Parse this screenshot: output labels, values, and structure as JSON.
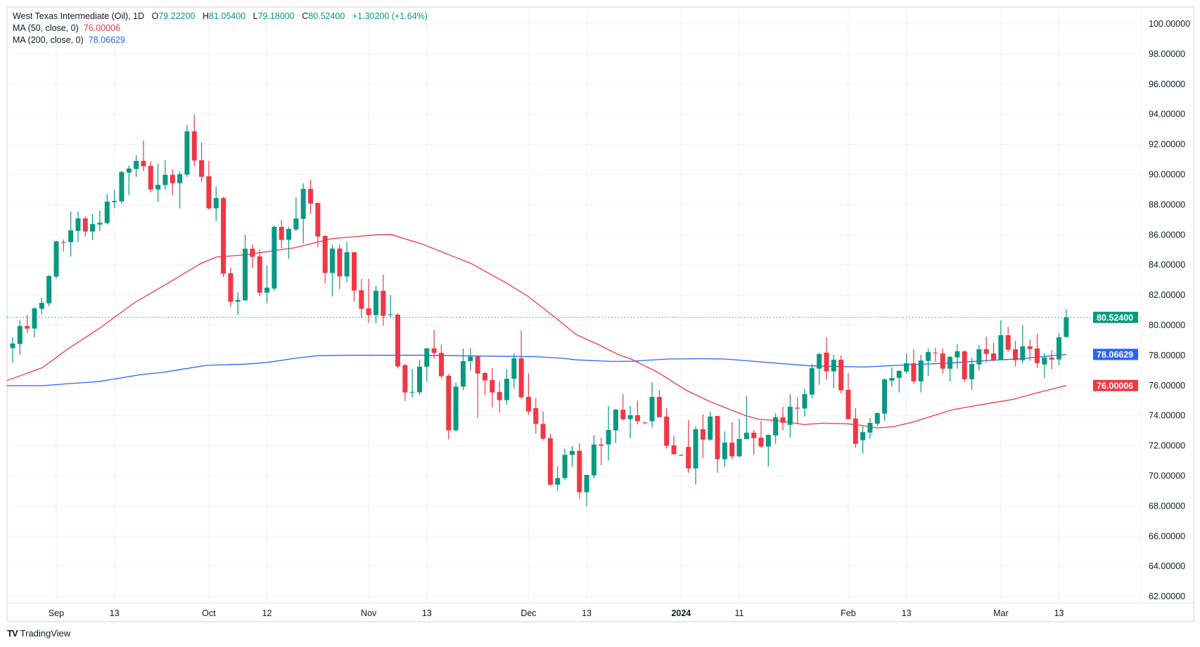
{
  "legend": {
    "symbol": "West Texas Intermediate (Oil), 1D",
    "o_label": "O",
    "o_value": "79.22200",
    "h_label": "H",
    "h_value": "81.05400",
    "l_label": "L",
    "l_value": "79.18000",
    "c_label": "C",
    "c_value": "80.52400",
    "change": "+1.30200 (+1.64%)",
    "ma50_label": "MA (50, close, 0)",
    "ma50_value": "76.00006",
    "ma200_label": "MA (200, close, 0)",
    "ma200_value": "78.06629"
  },
  "branding": {
    "logo_text": "TradingView",
    "logo_mark": "TV"
  },
  "colors": {
    "up": "#089981",
    "down": "#f23645",
    "ma50": "#f23645",
    "ma200": "#2962ff",
    "grid": "#f0f3fa",
    "text": "#131722"
  },
  "chart_data": {
    "type": "candlestick",
    "title": "West Texas Intermediate (Oil), 1D",
    "ylim": [
      62,
      100
    ],
    "y_ticks": [
      "100.00000",
      "98.00000",
      "96.00000",
      "94.00000",
      "92.00000",
      "90.00000",
      "88.00000",
      "86.00000",
      "84.00000",
      "82.00000",
      "80.00000",
      "78.00000",
      "76.00000",
      "74.00000",
      "72.00000",
      "70.00000",
      "68.00000",
      "66.00000",
      "64.00000",
      "62.00000"
    ],
    "y_tick_values": [
      100,
      98,
      96,
      94,
      92,
      90,
      88,
      86,
      84,
      82,
      80,
      78,
      76,
      74,
      72,
      70,
      68,
      66,
      64,
      62
    ],
    "x_ticks": [
      {
        "i": 6,
        "label": "Sep",
        "bold": false
      },
      {
        "i": 14,
        "label": "13",
        "bold": false
      },
      {
        "i": 27,
        "label": "Oct",
        "bold": false
      },
      {
        "i": 35,
        "label": "12",
        "bold": false
      },
      {
        "i": 49,
        "label": "Nov",
        "bold": false
      },
      {
        "i": 57,
        "label": "13",
        "bold": false
      },
      {
        "i": 71,
        "label": "Dec",
        "bold": false
      },
      {
        "i": 79,
        "label": "13",
        "bold": false
      },
      {
        "i": 92,
        "label": "2024",
        "bold": true
      },
      {
        "i": 100,
        "label": "11",
        "bold": false
      },
      {
        "i": 115,
        "label": "Feb",
        "bold": false
      },
      {
        "i": 123,
        "label": "13",
        "bold": false
      },
      {
        "i": 136,
        "label": "Mar",
        "bold": false
      },
      {
        "i": 144,
        "label": "13",
        "bold": false
      }
    ],
    "last_price": {
      "value": 80.524,
      "label": "80.52400"
    },
    "ma50_last": {
      "value": 76.00006,
      "label": "76.00006"
    },
    "ma200_last": {
      "value": 78.06629,
      "label": "78.06629"
    },
    "ohlc": [
      [
        78.48,
        79.21,
        77.55,
        78.79
      ],
      [
        78.76,
        80.33,
        78.04,
        79.95
      ],
      [
        79.95,
        80.7,
        79.5,
        79.78
      ],
      [
        79.78,
        81.2,
        79.2,
        81.12
      ],
      [
        81.09,
        81.82,
        80.7,
        81.49
      ],
      [
        81.46,
        83.36,
        81.27,
        83.27
      ],
      [
        83.23,
        85.6,
        83.1,
        85.57
      ],
      [
        85.53,
        85.7,
        84.9,
        85.5
      ],
      [
        85.52,
        87.55,
        84.57,
        86.3
      ],
      [
        86.26,
        87.55,
        85.52,
        87.09
      ],
      [
        87.09,
        87.23,
        85.89,
        86.22
      ],
      [
        86.22,
        87.37,
        85.66,
        86.71
      ],
      [
        86.68,
        87.6,
        86.26,
        86.8
      ],
      [
        86.78,
        88.72,
        86.68,
        88.21
      ],
      [
        88.17,
        89.0,
        87.76,
        88.25
      ],
      [
        88.22,
        90.26,
        88.08,
        90.17
      ],
      [
        90.13,
        90.58,
        88.64,
        90.4
      ],
      [
        90.37,
        91.28,
        89.85,
        90.91
      ],
      [
        90.91,
        92.26,
        90.23,
        90.55
      ],
      [
        90.58,
        90.86,
        88.83,
        89.01
      ],
      [
        89.01,
        90.72,
        88.18,
        89.32
      ],
      [
        89.3,
        90.96,
        89.01,
        89.98
      ],
      [
        89.98,
        90.35,
        88.64,
        89.43
      ],
      [
        89.43,
        90.21,
        87.76,
        90.03
      ],
      [
        90.0,
        93.29,
        89.85,
        92.87
      ],
      [
        92.87,
        93.99,
        90.55,
        90.93
      ],
      [
        90.96,
        92.12,
        89.53,
        89.85
      ],
      [
        89.89,
        90.91,
        87.66,
        87.76
      ],
      [
        87.76,
        89.19,
        86.92,
        88.44
      ],
      [
        88.44,
        88.53,
        83.19,
        83.42
      ],
      [
        83.45,
        83.84,
        81.23,
        81.56
      ],
      [
        81.56,
        82.19,
        80.67,
        81.68
      ],
      [
        81.65,
        86.02,
        81.65,
        85.08
      ],
      [
        85.08,
        85.36,
        83.79,
        84.54
      ],
      [
        84.57,
        85.04,
        81.93,
        82.16
      ],
      [
        82.16,
        83.97,
        81.46,
        82.49
      ],
      [
        82.44,
        86.62,
        82.3,
        86.53
      ],
      [
        86.53,
        86.99,
        85.1,
        85.66
      ],
      [
        85.66,
        86.52,
        84.42,
        86.39
      ],
      [
        86.36,
        88.49,
        86.24,
        87.09
      ],
      [
        87.06,
        89.42,
        85.43,
        89.05
      ],
      [
        89.05,
        89.65,
        87.39,
        88.08
      ],
      [
        88.12,
        88.12,
        85.19,
        85.89
      ],
      [
        85.92,
        86.0,
        82.77,
        83.47
      ],
      [
        83.47,
        85.35,
        81.93,
        85.09
      ],
      [
        85.09,
        85.35,
        82.4,
        83.24
      ],
      [
        83.24,
        85.54,
        82.86,
        84.85
      ],
      [
        84.85,
        84.85,
        81.56,
        82.3
      ],
      [
        82.33,
        83.08,
        80.5,
        81.09
      ],
      [
        81.12,
        83.08,
        80.16,
        80.67
      ],
      [
        80.67,
        82.61,
        80.11,
        82.29
      ],
      [
        82.29,
        83.36,
        79.97,
        80.63
      ],
      [
        80.7,
        82.0,
        80.52,
        80.73
      ],
      [
        80.7,
        80.81,
        77.13,
        77.27
      ],
      [
        77.35,
        77.44,
        74.98,
        75.54
      ],
      [
        75.55,
        77.11,
        75.22,
        75.58
      ],
      [
        75.55,
        77.72,
        75.36,
        77.25
      ],
      [
        77.25,
        78.47,
        76.24,
        78.47
      ],
      [
        78.47,
        79.69,
        77.78,
        78.16
      ],
      [
        78.17,
        78.71,
        76.48,
        76.62
      ],
      [
        76.65,
        76.77,
        72.42,
        73.03
      ],
      [
        73.03,
        76.2,
        72.94,
        75.93
      ],
      [
        75.93,
        78.47,
        75.7,
        77.62
      ],
      [
        77.62,
        78.47,
        77.0,
        77.92
      ],
      [
        77.92,
        77.97,
        73.87,
        76.8
      ],
      [
        76.83,
        76.9,
        75.36,
        76.34
      ],
      [
        76.37,
        77.16,
        74.57,
        75.54
      ],
      [
        75.57,
        76.29,
        74.19,
        75.03
      ],
      [
        75.03,
        77.08,
        74.75,
        76.45
      ],
      [
        76.45,
        78.14,
        75.78,
        77.81
      ],
      [
        77.81,
        79.65,
        75.12,
        75.22
      ],
      [
        75.25,
        76.8,
        74.05,
        74.28
      ],
      [
        74.5,
        75.17,
        72.79,
        73.45
      ],
      [
        73.45,
        74.29,
        72.37,
        72.47
      ],
      [
        72.5,
        72.8,
        69.33,
        69.42
      ],
      [
        69.42,
        70.65,
        69.02,
        69.86
      ],
      [
        69.86,
        71.81,
        69.72,
        71.4
      ],
      [
        71.4,
        71.99,
        70.6,
        71.66
      ],
      [
        71.67,
        72.17,
        68.5,
        68.92
      ],
      [
        68.92,
        70.07,
        67.99,
        70.07
      ],
      [
        70.04,
        72.71,
        69.85,
        72.09
      ],
      [
        72.09,
        72.55,
        70.69,
        72.01
      ],
      [
        72.09,
        74.64,
        71.02,
        73.05
      ],
      [
        73.02,
        74.45,
        72.18,
        74.4
      ],
      [
        74.4,
        75.43,
        73.67,
        73.77
      ],
      [
        73.77,
        74.64,
        72.5,
        74.03
      ],
      [
        74.03,
        75.01,
        73.44,
        73.63
      ],
      [
        73.55,
        73.6,
        73.45,
        73.5
      ],
      [
        73.63,
        76.22,
        73.21,
        75.24
      ],
      [
        75.24,
        75.71,
        73.9,
        73.9
      ],
      [
        73.94,
        74.5,
        71.81,
        72.0
      ],
      [
        72.03,
        72.68,
        71.44,
        71.44
      ],
      [
        71.38,
        71.45,
        71.33,
        71.4
      ],
      [
        71.93,
        73.72,
        70.22,
        70.5
      ],
      [
        70.5,
        73.29,
        69.43,
        73.1
      ],
      [
        73.1,
        74.08,
        71.2,
        72.41
      ],
      [
        72.41,
        74.26,
        72.32,
        73.94
      ],
      [
        73.98,
        73.98,
        70.22,
        71.11
      ],
      [
        71.11,
        72.96,
        70.6,
        72.21
      ],
      [
        72.21,
        73.56,
        71.11,
        71.3
      ],
      [
        71.3,
        73.8,
        71.25,
        72.45
      ],
      [
        72.45,
        75.29,
        72.45,
        72.87
      ],
      [
        72.87,
        73.05,
        71.39,
        72.51
      ],
      [
        72.54,
        73.66,
        71.86,
        71.95
      ],
      [
        71.95,
        72.77,
        70.64,
        72.72
      ],
      [
        72.69,
        74.17,
        72.13,
        73.89
      ],
      [
        73.89,
        74.59,
        73.02,
        73.53
      ],
      [
        73.39,
        75.43,
        72.55,
        74.59
      ],
      [
        74.53,
        75.2,
        73.44,
        74.47
      ],
      [
        74.47,
        75.8,
        73.95,
        75.43
      ],
      [
        75.4,
        77.43,
        75.17,
        77.15
      ],
      [
        77.12,
        78.18,
        76.05,
        78.09
      ],
      [
        78.18,
        79.2,
        76.38,
        76.94
      ],
      [
        76.94,
        78.04,
        75.82,
        77.71
      ],
      [
        77.71,
        77.99,
        75.49,
        75.68
      ],
      [
        75.71,
        76.83,
        73.77,
        73.77
      ],
      [
        73.81,
        74.5,
        71.86,
        72.13
      ],
      [
        72.37,
        73.29,
        71.48,
        72.91
      ],
      [
        72.88,
        73.84,
        72.46,
        73.52
      ],
      [
        73.47,
        74.23,
        73.3,
        74.17
      ],
      [
        74.14,
        76.47,
        73.67,
        76.41
      ],
      [
        76.33,
        77.2,
        75.91,
        76.5
      ],
      [
        76.51,
        77.01,
        75.54,
        76.98
      ],
      [
        76.93,
        78.13,
        76.79,
        77.48
      ],
      [
        77.48,
        78.41,
        76.14,
        76.28
      ],
      [
        76.28,
        78.04,
        75.54,
        77.66
      ],
      [
        77.63,
        78.46,
        76.65,
        78.22
      ],
      [
        78.18,
        78.5,
        77.59,
        78.15
      ],
      [
        78.13,
        78.46,
        76.79,
        77.12
      ],
      [
        77.12,
        77.94,
        76.28,
        77.9
      ],
      [
        77.87,
        78.74,
        77.12,
        78.27
      ],
      [
        78.27,
        78.32,
        76.23,
        76.42
      ],
      [
        76.42,
        77.85,
        75.72,
        77.43
      ],
      [
        77.4,
        78.69,
        76.98,
        78.41
      ],
      [
        78.41,
        79.25,
        77.54,
        78.1
      ],
      [
        78.13,
        78.83,
        77.59,
        77.68
      ],
      [
        77.73,
        80.32,
        77.68,
        79.34
      ],
      [
        79.34,
        79.9,
        78.24,
        78.38
      ],
      [
        78.41,
        78.97,
        77.26,
        77.68
      ],
      [
        77.68,
        80.0,
        77.49,
        78.6
      ],
      [
        78.6,
        79.06,
        77.63,
        78.43
      ],
      [
        78.46,
        79.44,
        77.17,
        77.49
      ],
      [
        77.4,
        78.13,
        76.51,
        77.85
      ],
      [
        77.85,
        78.36,
        77.07,
        77.73
      ],
      [
        77.73,
        79.48,
        77.35,
        79.2
      ],
      [
        79.222,
        81.054,
        79.18,
        80.524
      ]
    ],
    "ma50": [
      [
        -0.8,
        76.33
      ],
      [
        4.1,
        77.19
      ],
      [
        7.6,
        78.43
      ],
      [
        11.8,
        79.75
      ],
      [
        16.9,
        81.54
      ],
      [
        20.8,
        82.63
      ],
      [
        25.9,
        84.1
      ],
      [
        28,
        84.52
      ],
      [
        32.1,
        84.68
      ],
      [
        38.9,
        85.15
      ],
      [
        43.8,
        85.74
      ],
      [
        50,
        86.0
      ],
      [
        52,
        86.03
      ],
      [
        56.3,
        85.4
      ],
      [
        60.2,
        84.65
      ],
      [
        63.1,
        84.1
      ],
      [
        68,
        82.79
      ],
      [
        70.9,
        81.93
      ],
      [
        74.4,
        80.61
      ],
      [
        77.6,
        79.37
      ],
      [
        80.5,
        78.74
      ],
      [
        83.4,
        78.04
      ],
      [
        84.9,
        77.81
      ],
      [
        88.8,
        76.87
      ],
      [
        92.6,
        75.71
      ],
      [
        96,
        74.93
      ],
      [
        100.9,
        74.0
      ],
      [
        102.6,
        73.77
      ],
      [
        105.7,
        73.64
      ],
      [
        108.9,
        73.41
      ],
      [
        111.5,
        73.5
      ],
      [
        114.9,
        73.46
      ],
      [
        117.3,
        73.33
      ],
      [
        119,
        73.19
      ],
      [
        121.2,
        73.27
      ],
      [
        124.1,
        73.6
      ],
      [
        127,
        74.04
      ],
      [
        129.4,
        74.4
      ],
      [
        133.8,
        74.77
      ],
      [
        137.7,
        75.08
      ],
      [
        140.6,
        75.47
      ],
      [
        145,
        76.0
      ]
    ],
    "ma200": [
      [
        -0.8,
        75.99
      ],
      [
        4.1,
        75.99
      ],
      [
        7.9,
        76.13
      ],
      [
        11.8,
        76.26
      ],
      [
        13.7,
        76.41
      ],
      [
        17.6,
        76.72
      ],
      [
        20.8,
        76.88
      ],
      [
        26.6,
        77.34
      ],
      [
        32.1,
        77.42
      ],
      [
        35,
        77.53
      ],
      [
        38.9,
        77.81
      ],
      [
        41.8,
        77.97
      ],
      [
        45.7,
        78.01
      ],
      [
        52.5,
        78.01
      ],
      [
        56.3,
        78.01
      ],
      [
        62.1,
        77.97
      ],
      [
        67,
        77.94
      ],
      [
        71.8,
        77.92
      ],
      [
        75.7,
        77.81
      ],
      [
        77.6,
        77.7
      ],
      [
        82.5,
        77.6
      ],
      [
        85.4,
        77.62
      ],
      [
        90.2,
        77.76
      ],
      [
        95.1,
        77.78
      ],
      [
        98,
        77.76
      ],
      [
        100.9,
        77.65
      ],
      [
        104.7,
        77.5
      ],
      [
        109.6,
        77.31
      ],
      [
        114.4,
        77.26
      ],
      [
        117.3,
        77.23
      ],
      [
        123.1,
        77.37
      ],
      [
        128.9,
        77.49
      ],
      [
        133.8,
        77.65
      ],
      [
        138.6,
        77.77
      ],
      [
        145,
        78.07
      ]
    ]
  }
}
